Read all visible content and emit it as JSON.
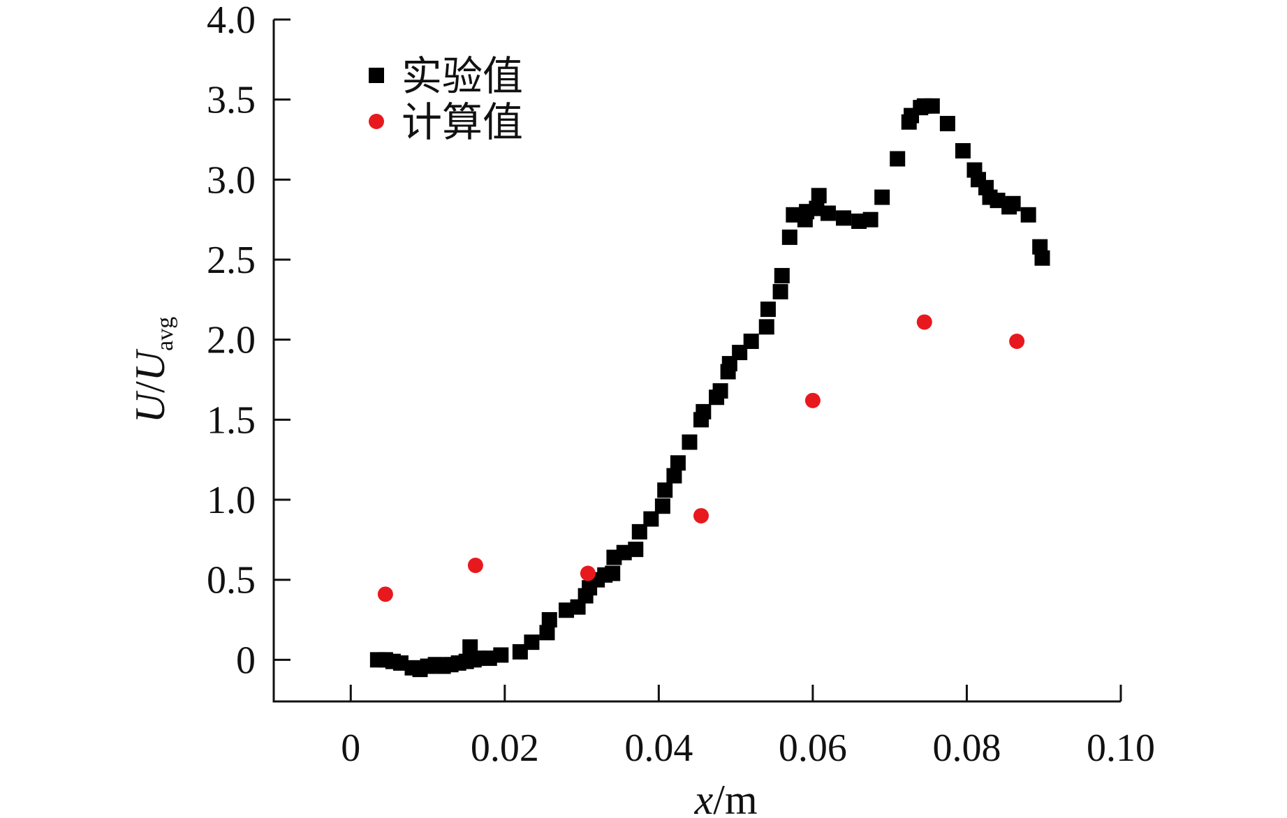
{
  "chart_data": {
    "type": "scatter",
    "title": "",
    "xlabel": {
      "var": "x",
      "unit": "/m"
    },
    "ylabel": {
      "var": "U",
      "sep": "/",
      "var2": "U",
      "sub": "avg"
    },
    "xlim": [
      -0.01,
      0.1
    ],
    "ylim": [
      -0.26,
      4.0
    ],
    "xticks": [
      0,
      0.02,
      0.04,
      0.06,
      0.08,
      0.1
    ],
    "xtick_labels": [
      "0",
      "0.02",
      "0.04",
      "0.06",
      "0.08",
      "0.10"
    ],
    "yticks": [
      0,
      0.5,
      1.0,
      1.5,
      2.0,
      2.5,
      3.0,
      3.5,
      4.0
    ],
    "ytick_labels": [
      "0",
      "0.5",
      "1.0",
      "1.5",
      "2.0",
      "2.5",
      "3.0",
      "3.5",
      "4.0"
    ],
    "grid": false,
    "legend_position": "top-left",
    "series": [
      {
        "name": "实验值",
        "marker": "square",
        "color": "#000000",
        "x": [
          0.0035,
          0.0045,
          0.0055,
          0.0065,
          0.008,
          0.009,
          0.01,
          0.011,
          0.012,
          0.013,
          0.014,
          0.015,
          0.0155,
          0.016,
          0.0165,
          0.018,
          0.0195,
          0.022,
          0.0235,
          0.0255,
          0.0258,
          0.028,
          0.0295,
          0.0305,
          0.031,
          0.032,
          0.033,
          0.034,
          0.0342,
          0.0355,
          0.037,
          0.0375,
          0.039,
          0.0405,
          0.0408,
          0.042,
          0.0425,
          0.044,
          0.0455,
          0.0458,
          0.0475,
          0.048,
          0.049,
          0.0492,
          0.0505,
          0.052,
          0.054,
          0.0542,
          0.0558,
          0.056,
          0.057,
          0.0575,
          0.059,
          0.0592,
          0.0605,
          0.0608,
          0.062,
          0.064,
          0.066,
          0.0675,
          0.069,
          0.071,
          0.0725,
          0.0728,
          0.074,
          0.0745,
          0.0755,
          0.0775,
          0.0795,
          0.081,
          0.0815,
          0.0825,
          0.083,
          0.084,
          0.0855,
          0.086,
          0.088,
          0.0895,
          0.0898
        ],
        "y": [
          0.0,
          0.0,
          -0.01,
          -0.02,
          -0.05,
          -0.06,
          -0.04,
          -0.03,
          -0.04,
          -0.03,
          -0.02,
          -0.01,
          0.08,
          0.0,
          0.01,
          0.01,
          0.03,
          0.05,
          0.11,
          0.17,
          0.25,
          0.31,
          0.33,
          0.4,
          0.45,
          0.5,
          0.53,
          0.54,
          0.64,
          0.67,
          0.69,
          0.8,
          0.88,
          0.96,
          1.06,
          1.15,
          1.23,
          1.36,
          1.5,
          1.55,
          1.64,
          1.68,
          1.8,
          1.85,
          1.92,
          1.99,
          2.08,
          2.19,
          2.3,
          2.4,
          2.64,
          2.78,
          2.75,
          2.8,
          2.82,
          2.9,
          2.79,
          2.76,
          2.74,
          2.75,
          2.89,
          3.13,
          3.36,
          3.4,
          3.45,
          3.46,
          3.46,
          3.35,
          3.18,
          3.06,
          3.0,
          2.95,
          2.89,
          2.87,
          2.83,
          2.85,
          2.78,
          2.58,
          2.51
        ]
      },
      {
        "name": "计算值",
        "marker": "circle",
        "color": "#e8191e",
        "x": [
          0.0045,
          0.0162,
          0.0308,
          0.0455,
          0.06,
          0.0745,
          0.0865
        ],
        "y": [
          0.41,
          0.59,
          0.54,
          0.9,
          1.62,
          2.11,
          1.99
        ]
      }
    ]
  }
}
